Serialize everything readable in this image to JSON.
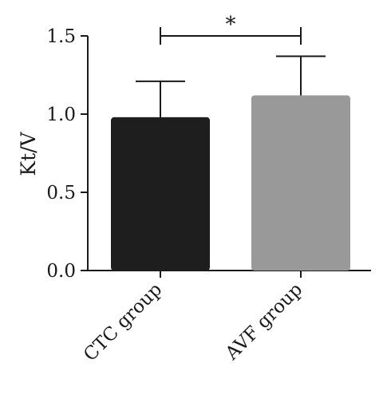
{
  "chart_data": {
    "type": "bar",
    "categories": [
      "CTC group",
      "AVF group"
    ],
    "values": [
      0.98,
      1.12
    ],
    "errors": [
      0.23,
      0.25
    ],
    "colors": [
      "#1e1e1e",
      "#999999"
    ],
    "ylabel": "Kt/V",
    "xlabel": "",
    "title": "",
    "ylim": [
      0,
      1.5
    ],
    "yticks": [
      "0.0",
      "0.5",
      "1.0",
      "1.5"
    ],
    "grid": false,
    "significance": {
      "from": 0,
      "to": 1,
      "y": 1.5,
      "label": "*"
    }
  }
}
